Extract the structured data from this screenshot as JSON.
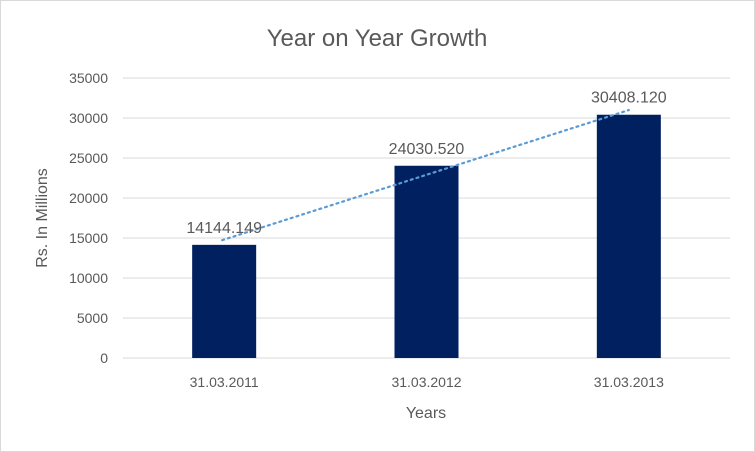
{
  "chart_data": {
    "type": "bar",
    "title": "Year on Year Growth",
    "xlabel": "Years",
    "ylabel": "Rs. In Millions",
    "categories": [
      "31.03.2011",
      "31.03.2012",
      "31.03.2013"
    ],
    "values": [
      14144.149,
      24030.52,
      30408.12
    ],
    "data_labels": [
      "14144.149",
      "24030.520",
      "30408.120"
    ],
    "ylim": [
      0,
      35000
    ],
    "yticks": [
      0,
      5000,
      10000,
      15000,
      20000,
      25000,
      30000,
      35000
    ],
    "grid": true,
    "legend": "none",
    "trendline": "linear",
    "colors": {
      "bar": "#002060",
      "trendline": "#5b9bd5",
      "grid": "#d9d9d9",
      "text": "#595959"
    }
  }
}
